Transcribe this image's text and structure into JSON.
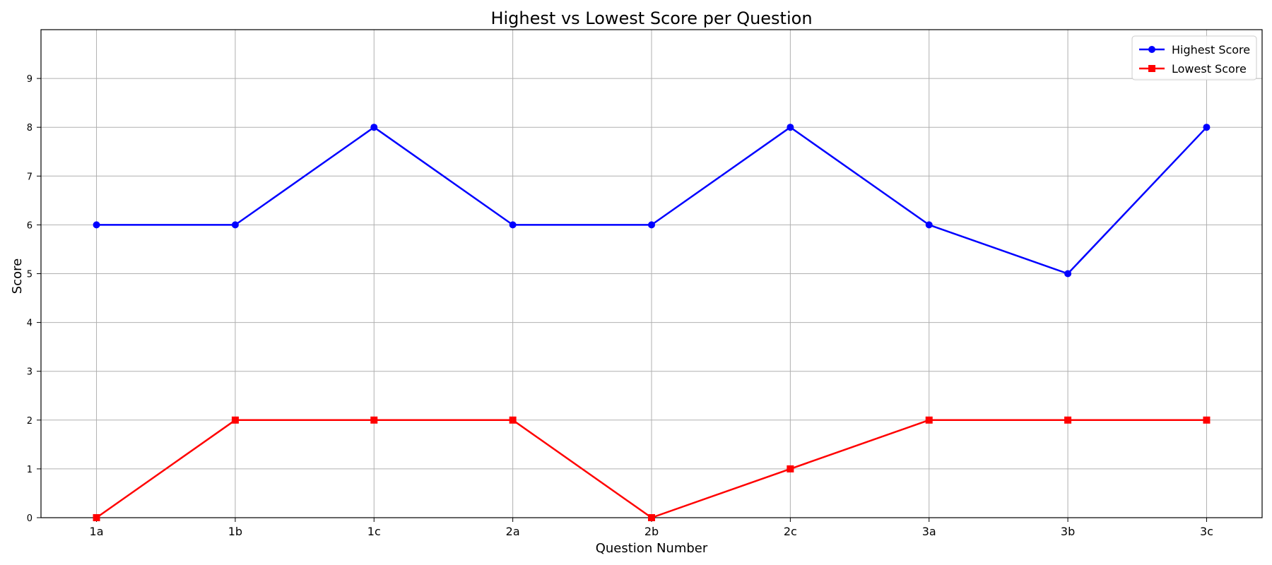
{
  "chart_data": {
    "type": "line",
    "title": "Highest vs Lowest Score per Question",
    "xlabel": "Question Number",
    "ylabel": "Score",
    "categories": [
      "1a",
      "1b",
      "1c",
      "2a",
      "2b",
      "2c",
      "3a",
      "3b",
      "3c"
    ],
    "yticks": [
      0,
      1,
      2,
      3,
      4,
      5,
      6,
      7,
      8,
      9
    ],
    "ylim": [
      0,
      10
    ],
    "grid": true,
    "legend_position": "top-right",
    "series": [
      {
        "name": "Highest Score",
        "color": "#0000ff",
        "marker": "circle",
        "values": [
          6,
          6,
          8,
          6,
          6,
          8,
          6,
          5,
          8
        ]
      },
      {
        "name": "Lowest Score",
        "color": "#ff0000",
        "marker": "square",
        "values": [
          0,
          2,
          2,
          2,
          0,
          1,
          2,
          2,
          2
        ]
      }
    ]
  }
}
